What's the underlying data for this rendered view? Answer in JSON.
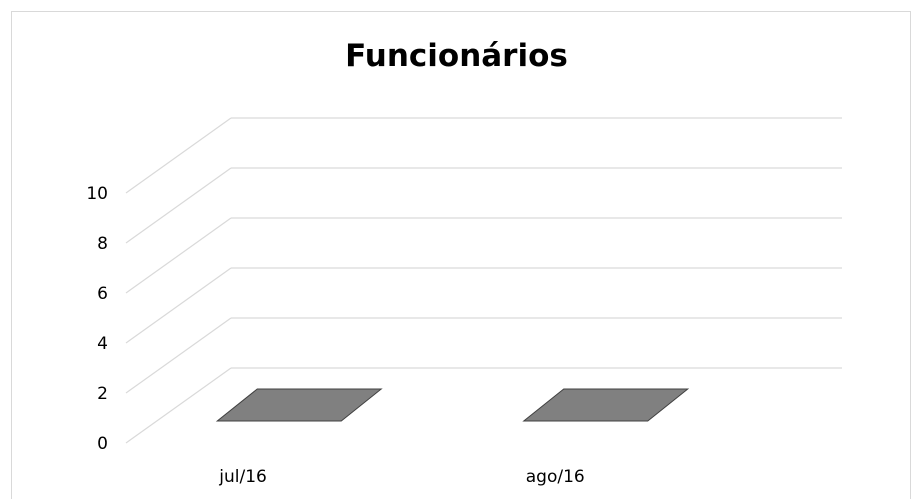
{
  "chart_data": {
    "type": "bar",
    "title": "Funcionários",
    "categories": [
      "jul/16",
      "ago/16"
    ],
    "series": [
      {
        "values": [
          0,
          0
        ]
      }
    ],
    "y_ticks": [
      "0",
      "2",
      "4",
      "6",
      "8",
      "10"
    ],
    "ylim": [
      0,
      10
    ],
    "grid": true,
    "three_d": true,
    "legend": "none",
    "bar_color": "#808080",
    "grid_color": "#d9d9d9"
  }
}
